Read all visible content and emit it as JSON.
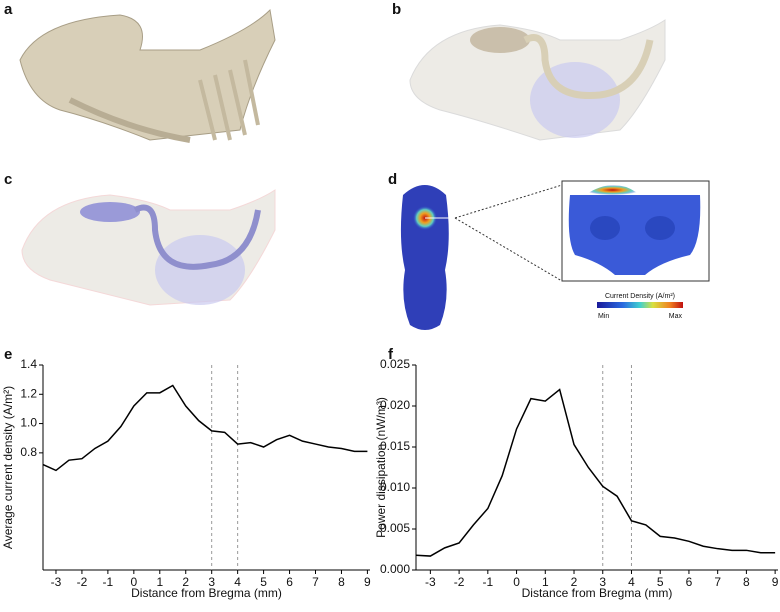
{
  "panel_labels": [
    "a",
    "b",
    "c",
    "d",
    "e",
    "f"
  ],
  "colorbar": {
    "title": "Current Density (A/m²)",
    "min_label": "Min",
    "max_label": "Max"
  },
  "chart_data": [
    {
      "type": "line",
      "color": "#000000",
      "x_label": "Distance from Bregma (mm)",
      "y_label": "Average current density (A/m²)",
      "x": [
        -3.5,
        -3,
        -2.5,
        -2,
        -1.5,
        -1,
        -0.5,
        0,
        0.5,
        1,
        1.5,
        2,
        2.5,
        3,
        3.5,
        4,
        4.5,
        5,
        5.5,
        6,
        6.5,
        7,
        7.5,
        8,
        8.5,
        9
      ],
      "values": [
        0.72,
        0.68,
        0.75,
        0.76,
        0.83,
        0.88,
        0.98,
        1.12,
        1.21,
        1.21,
        1.26,
        1.12,
        1.02,
        0.95,
        0.94,
        0.86,
        0.87,
        0.84,
        0.89,
        0.92,
        0.88,
        0.86,
        0.84,
        0.83,
        0.81,
        0.81
      ],
      "xlim": [
        -3.5,
        9.1
      ],
      "xticks": [
        -3,
        -2,
        -1,
        0,
        1,
        2,
        3,
        4,
        5,
        6,
        7,
        8,
        9
      ],
      "ylim": [
        0,
        1.4
      ],
      "yticks": [
        0.8,
        {
          "value": 1,
          "label": "1.0"
        },
        1.2,
        1.4
      ],
      "vlines": [
        3,
        4
      ]
    },
    {
      "type": "line",
      "color": "#000000",
      "x_label": "Distance from Bregma (mm)",
      "y_label": "Power dissipation (nW/m³)",
      "x": [
        -3.5,
        -3,
        -2.5,
        -2,
        -1.5,
        -1,
        -0.5,
        0,
        0.5,
        1,
        1.5,
        2,
        2.5,
        3,
        3.5,
        4,
        4.5,
        5,
        5.5,
        6,
        6.5,
        7,
        7.5,
        8,
        8.5,
        9
      ],
      "values": [
        0.0018,
        0.0017,
        0.0027,
        0.0033,
        0.0055,
        0.0075,
        0.0115,
        0.0172,
        0.0209,
        0.0206,
        0.022,
        0.0153,
        0.0125,
        0.0102,
        0.009,
        0.006,
        0.0055,
        0.0041,
        0.0039,
        0.0035,
        0.0029,
        0.0026,
        0.0024,
        0.0024,
        0.0021,
        0.0021
      ],
      "xlim": [
        -3.5,
        9.1
      ],
      "xticks": [
        -3,
        -2,
        -1,
        0,
        1,
        2,
        3,
        4,
        5,
        6,
        7,
        8,
        9
      ],
      "ylim": [
        0,
        0.025
      ],
      "yticks": [
        {
          "value": 0,
          "label": "0.000"
        },
        {
          "value": 0.005,
          "label": "0.005"
        },
        {
          "value": 0.01,
          "label": "0.010"
        },
        {
          "value": 0.015,
          "label": "0.015"
        },
        {
          "value": 0.02,
          "label": "0.020"
        },
        {
          "value": 0.025,
          "label": "0.025"
        }
      ],
      "vlines": [
        3,
        4
      ]
    }
  ]
}
